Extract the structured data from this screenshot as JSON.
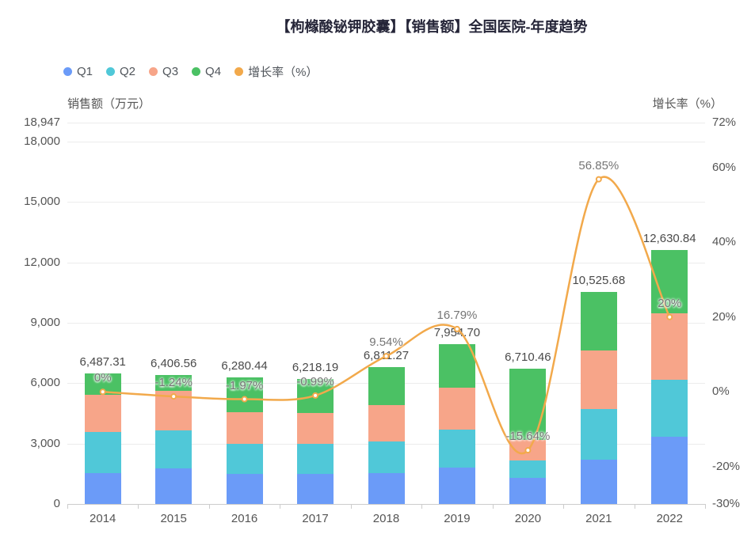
{
  "title": "【枸橼酸铋钾胶囊】【销售额】全国医院-年度趋势",
  "chart_data": {
    "type": "bar",
    "subtype": "stacked-bar-with-line-overlay",
    "categories": [
      "2014",
      "2015",
      "2016",
      "2017",
      "2018",
      "2019",
      "2020",
      "2021",
      "2022"
    ],
    "series": [
      {
        "name": "Q1",
        "type": "bar",
        "stack": true,
        "color": "#6B9BF8",
        "values": [
          1550,
          1750,
          1480,
          1480,
          1550,
          1810,
          1300,
          2220,
          3350
        ]
      },
      {
        "name": "Q2",
        "type": "bar",
        "stack": true,
        "color": "#50C8D8",
        "values": [
          2020,
          1900,
          1520,
          1520,
          1550,
          1890,
          850,
          2490,
          2840
        ]
      },
      {
        "name": "Q3",
        "type": "bar",
        "stack": true,
        "color": "#F7A589",
        "values": [
          1870,
          1980,
          1560,
          1523,
          1830,
          2080,
          1050,
          2920,
          3270
        ]
      },
      {
        "name": "Q4",
        "type": "bar",
        "stack": true,
        "color": "#4BC164",
        "values": [
          1047.31,
          776.56,
          1720.44,
          1695.19,
          1881.27,
          2174.7,
          3510.46,
          2895.68,
          3170.84
        ]
      },
      {
        "name": "增长率（%）",
        "type": "line",
        "axis": "right",
        "color": "#F2A94B",
        "values": [
          0,
          -1.24,
          -1.97,
          -0.99,
          9.54,
          16.79,
          -15.64,
          56.85,
          20
        ],
        "point_labels": [
          "0%",
          "-1.24%",
          "-1.97%",
          "-0.99%",
          "9.54%",
          "16.79%",
          "-15.64%",
          "56.85%",
          "20%"
        ]
      }
    ],
    "totals": [
      6487.31,
      6406.56,
      6280.44,
      6218.19,
      6811.27,
      7954.7,
      6710.46,
      10525.68,
      12630.84
    ],
    "total_labels": [
      "6,487.31",
      "6,406.56",
      "6,280.44",
      "6,218.19",
      "6,811.27",
      "7,954.70",
      "6,710.46",
      "10,525.68",
      "12,630.84"
    ],
    "left_axis": {
      "name": "销售额（万元）",
      "min": 0,
      "max": 18947,
      "ticks": [
        {
          "v": 0,
          "label": "0"
        },
        {
          "v": 3000,
          "label": "3,000"
        },
        {
          "v": 6000,
          "label": "6,000"
        },
        {
          "v": 9000,
          "label": "9,000"
        },
        {
          "v": 12000,
          "label": "12,000"
        },
        {
          "v": 15000,
          "label": "15,000"
        },
        {
          "v": 18000,
          "label": "18,000"
        },
        {
          "v": 18947,
          "label": "18,947"
        }
      ]
    },
    "right_axis": {
      "name": "增长率（%）",
      "min": -30,
      "max": 72,
      "ticks": [
        {
          "v": -30,
          "label": "-30%"
        },
        {
          "v": -20,
          "label": "-20%"
        },
        {
          "v": 0,
          "label": "0%"
        },
        {
          "v": 20,
          "label": "20%"
        },
        {
          "v": 40,
          "label": "40%"
        },
        {
          "v": 60,
          "label": "60%"
        },
        {
          "v": 72,
          "label": "72%"
        }
      ]
    },
    "grid": true,
    "legend_position": "top-left"
  }
}
